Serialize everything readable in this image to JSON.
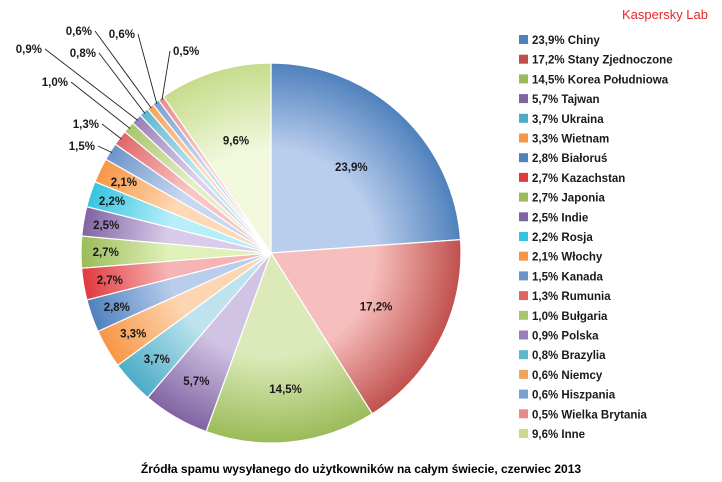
{
  "brand": "Kaspersky Lab",
  "chart_data": {
    "type": "pie",
    "title": "Źródła spamu wysyłanego do użytkowników na całym świecie, czerwiec 2013",
    "legend_position": "right",
    "slices": [
      {
        "label": "23,9%",
        "legend": "23,9% Chiny",
        "value": 23.9,
        "color": "#4f81bd",
        "light": "#b9cdec"
      },
      {
        "label": "17,2%",
        "legend": "17,2% Stany Zjednoczone",
        "value": 17.2,
        "color": "#c0504d",
        "light": "#f6bebc"
      },
      {
        "label": "14,5%",
        "legend": "14,5% Korea Południowa",
        "value": 14.5,
        "color": "#9bbb59",
        "light": "#dbeab8"
      },
      {
        "label": "5,7%",
        "legend": "5,7% Tajwan",
        "value": 5.7,
        "color": "#8064a2",
        "light": "#d1c3e3"
      },
      {
        "label": "3,7%",
        "legend": "3,7% Ukraina",
        "value": 3.7,
        "color": "#4bacc6",
        "light": "#bee3ee"
      },
      {
        "label": "3,3%",
        "legend": "3,3% Wietnam",
        "value": 3.3,
        "color": "#f79646",
        "light": "#fcd6b2"
      },
      {
        "label": "2,8%",
        "legend": "2,8% Białoruś",
        "value": 2.8,
        "color": "#4f81bd",
        "light": "#b9cdec"
      },
      {
        "label": "2,7%",
        "legend": "2,7% Kazachstan",
        "value": 2.7,
        "color": "#e0393e",
        "light": "#f7b4b4"
      },
      {
        "label": "2,7%",
        "legend": "2,7% Japonia",
        "value": 2.7,
        "color": "#9bbb59",
        "light": "#dff0b8"
      },
      {
        "label": "2,5%",
        "legend": "2,5% Indie",
        "value": 2.5,
        "color": "#8064a2",
        "light": "#d9cbea"
      },
      {
        "label": "2,2%",
        "legend": "2,2% Rosja",
        "value": 2.2,
        "color": "#35c4e0",
        "light": "#b8eef8"
      },
      {
        "label": "2,1%",
        "legend": "2,1% Włochy",
        "value": 2.1,
        "color": "#f79646",
        "light": "#fdd9b5"
      },
      {
        "label": "1,5%",
        "legend": "1,5% Kanada",
        "value": 1.5,
        "color": "#6b94c9",
        "light": "#c7d8f0"
      },
      {
        "label": "1,3%",
        "legend": "1,3% Rumunia",
        "value": 1.3,
        "color": "#e06666",
        "light": "#f8c4c4"
      },
      {
        "label": "1,0%",
        "legend": "1,0% Bułgaria",
        "value": 1.0,
        "color": "#a9c46c",
        "light": "#e3f0c6"
      },
      {
        "label": "0,9%",
        "legend": "0,9% Polska",
        "value": 0.9,
        "color": "#9a80b8",
        "light": "#ddd1ec"
      },
      {
        "label": "0,8%",
        "legend": "0,8% Brazylia",
        "value": 0.8,
        "color": "#5fb6cf",
        "light": "#c6e8f1"
      },
      {
        "label": "0,6%",
        "legend": "0,6% Niemcy",
        "value": 0.6,
        "color": "#f2a45c",
        "light": "#fbdcbf"
      },
      {
        "label": "0,6%",
        "legend": "0,6% Hiszpania",
        "value": 0.6,
        "color": "#7aa0d0",
        "light": "#cddcf2"
      },
      {
        "label": "0,5%",
        "legend": "0,5% Wielka Brytania",
        "value": 0.5,
        "color": "#e88a8a",
        "light": "#f9d0d0"
      },
      {
        "label": "9,6%",
        "legend": "9,6% Inne",
        "value": 9.6,
        "color": "#c6dc8c",
        "light": "#f1f8dc"
      }
    ]
  }
}
